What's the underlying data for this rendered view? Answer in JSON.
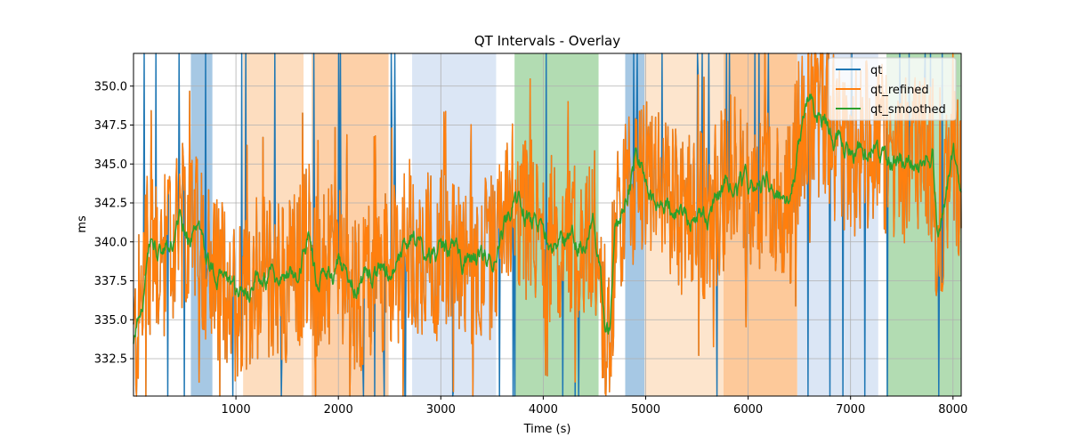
{
  "chart_data": {
    "type": "line",
    "title": "QT Intervals - Overlay",
    "xlabel": "Time (s)",
    "ylabel": "ms",
    "xlim": [
      0,
      8080
    ],
    "ylim": [
      330.1,
      352.1
    ],
    "x_ticks": [
      1000,
      2000,
      3000,
      4000,
      5000,
      6000,
      7000,
      8000
    ],
    "x_tick_labels": [
      "1000",
      "2000",
      "3000",
      "4000",
      "5000",
      "6000",
      "7000",
      "8000"
    ],
    "y_ticks": [
      332.5,
      335.0,
      337.5,
      340.0,
      342.5,
      345.0,
      347.5,
      350.0
    ],
    "y_tick_labels": [
      "332.5",
      "335.0",
      "337.5",
      "340.0",
      "342.5",
      "345.0",
      "347.5",
      "350.0"
    ],
    "grid": true,
    "legend_position": "upper-right",
    "colors": {
      "qt": "#1f77b4",
      "qt_refined": "#ff7f0e",
      "qt_smoothed": "#2ca02c"
    },
    "shaded_regions": [
      {
        "x0": 560,
        "x1": 770,
        "color": "#a6c8e4"
      },
      {
        "x0": 1070,
        "x1": 1660,
        "color": "#fdddbf"
      },
      {
        "x0": 1740,
        "x1": 2490,
        "color": "#fdd0a8"
      },
      {
        "x0": 2720,
        "x1": 3540,
        "color": "#dbe6f5"
      },
      {
        "x0": 3720,
        "x1": 4540,
        "color": "#b2dcb2"
      },
      {
        "x0": 4800,
        "x1": 4990,
        "color": "#a6c8e4"
      },
      {
        "x0": 4990,
        "x1": 5760,
        "color": "#fde5cd"
      },
      {
        "x0": 5760,
        "x1": 6480,
        "color": "#fdc99a"
      },
      {
        "x0": 6480,
        "x1": 7270,
        "color": "#dbe6f5"
      },
      {
        "x0": 7350,
        "x1": 8080,
        "color": "#b2dcb2"
      }
    ],
    "smoothed_anchor_points": {
      "x": [
        0,
        150,
        300,
        450,
        600,
        800,
        1000,
        1200,
        1400,
        1600,
        1700,
        1800,
        2000,
        2200,
        2400,
        2600,
        2700,
        2900,
        3100,
        3300,
        3500,
        3700,
        3800,
        4000,
        4200,
        4400,
        4500,
        4600,
        4650,
        4700,
        4900,
        5000,
        5200,
        5400,
        5600,
        5800,
        6000,
        6200,
        6400,
        6500,
        6600,
        6800,
        7000,
        7200,
        7400,
        7600,
        7800,
        7850,
        8000,
        8080
      ],
      "y": [
        333.0,
        339.5,
        339.0,
        341.0,
        340.5,
        338.0,
        336.5,
        337.8,
        337.5,
        338.0,
        340.5,
        337.5,
        338.5,
        337.0,
        338.0,
        338.5,
        340.0,
        339.0,
        339.5,
        338.5,
        339.0,
        342.5,
        342.0,
        340.5,
        340.0,
        340.0,
        341.0,
        335.0,
        334.5,
        340.5,
        344.5,
        344.0,
        342.5,
        342.0,
        341.5,
        344.0,
        343.5,
        344.0,
        342.0,
        346.5,
        349.0,
        347.0,
        345.5,
        346.5,
        345.5,
        345.0,
        345.5,
        340.0,
        346.0,
        344.0
      ]
    },
    "series": [
      {
        "name": "qt"
      },
      {
        "name": "qt_refined"
      },
      {
        "name": "qt_smoothed"
      }
    ]
  }
}
